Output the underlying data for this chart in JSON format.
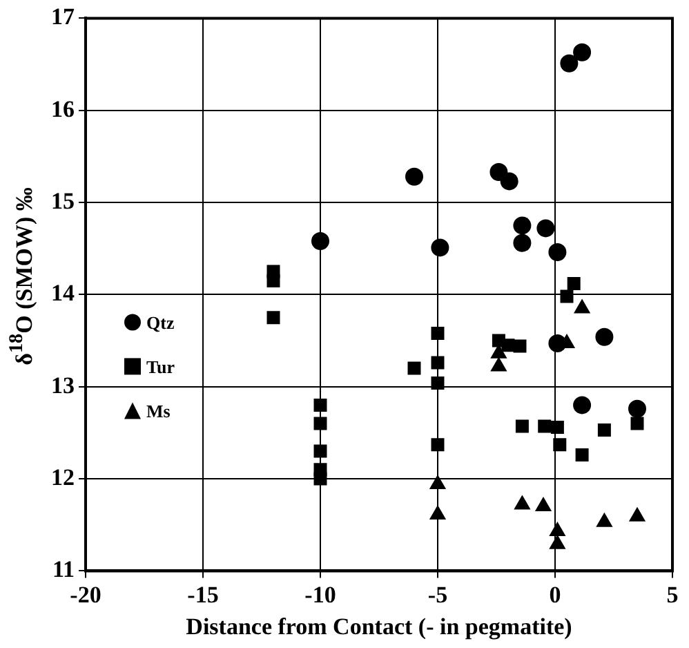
{
  "chart_data": {
    "type": "scatter",
    "xlabel": "Distance from Contact (- in pegmatite)",
    "ylabel": "δ$^{18}$O (SMOW) ‰",
    "xlim": [
      -20,
      5
    ],
    "ylim": [
      11,
      17
    ],
    "xticks": [
      -20,
      -15,
      -10,
      -5,
      0,
      5
    ],
    "yticks": [
      11,
      12,
      13,
      14,
      15,
      16,
      17
    ],
    "grid": true,
    "legend": "left",
    "series": [
      {
        "name": "Qtz",
        "color": "#000000",
        "marker": "circle",
        "x": [
          -10,
          -6,
          -4.9,
          -2.4,
          -1.95,
          -1.4,
          -1.4,
          -0.4,
          0.1,
          0.6,
          1.15,
          0.1,
          2.1,
          1.15,
          3.5
        ],
        "values": [
          14.58,
          15.28,
          14.51,
          15.33,
          15.23,
          14.75,
          14.56,
          14.72,
          14.46,
          16.51,
          16.63,
          13.47,
          13.54,
          12.8,
          12.76
        ]
      },
      {
        "name": "Tur",
        "color": "#000000",
        "marker": "square",
        "x": [
          -12,
          -12,
          -12,
          -10,
          -10,
          -10,
          -10,
          -10,
          -5,
          -5,
          -6,
          -5,
          -5,
          -2.4,
          -1.5,
          -2,
          0.8,
          0.5,
          -1.4,
          -0.45,
          0.1,
          0.2,
          1.15,
          2.1,
          3.5
        ],
        "values": [
          14.25,
          14.15,
          13.75,
          12.8,
          12.6,
          12.3,
          12.1,
          12.0,
          13.58,
          13.26,
          13.2,
          13.04,
          12.37,
          13.5,
          13.44,
          13.45,
          14.12,
          13.98,
          12.57,
          12.57,
          12.56,
          12.37,
          12.26,
          12.53,
          12.6
        ]
      },
      {
        "name": "Ms",
        "color": "#000000",
        "marker": "triangle",
        "x": [
          -2.4,
          -2.4,
          1.15,
          0.5,
          -5,
          -5,
          -1.4,
          -0.5,
          0.1,
          0.1,
          2.1,
          3.5
        ],
        "values": [
          13.36,
          13.22,
          13.85,
          13.47,
          11.94,
          11.61,
          11.72,
          11.7,
          11.43,
          11.29,
          11.53,
          11.59
        ]
      }
    ]
  }
}
